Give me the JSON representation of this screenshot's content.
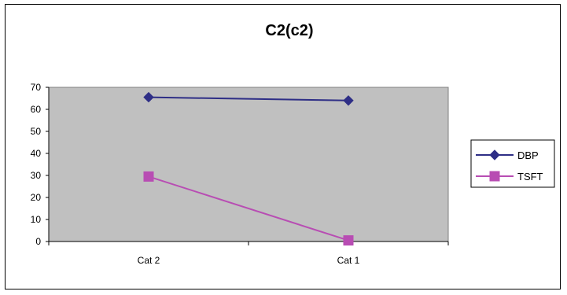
{
  "chart_data": {
    "type": "line",
    "title": "C2(c2)",
    "categories": [
      "Cat 2",
      "Cat 1"
    ],
    "series": [
      {
        "name": "DBP",
        "values": [
          65.5,
          64
        ],
        "color": "#2e2e86",
        "marker": "diamond"
      },
      {
        "name": "TSFT",
        "values": [
          29.5,
          0.5
        ],
        "color": "#b84db3",
        "marker": "square"
      }
    ],
    "ylim": [
      0,
      70
    ],
    "yticks": [
      "0",
      "10",
      "20",
      "30",
      "40",
      "50",
      "60",
      "70"
    ],
    "grid": false,
    "plot_background": "#c0c0c0",
    "legend_position": "right"
  }
}
